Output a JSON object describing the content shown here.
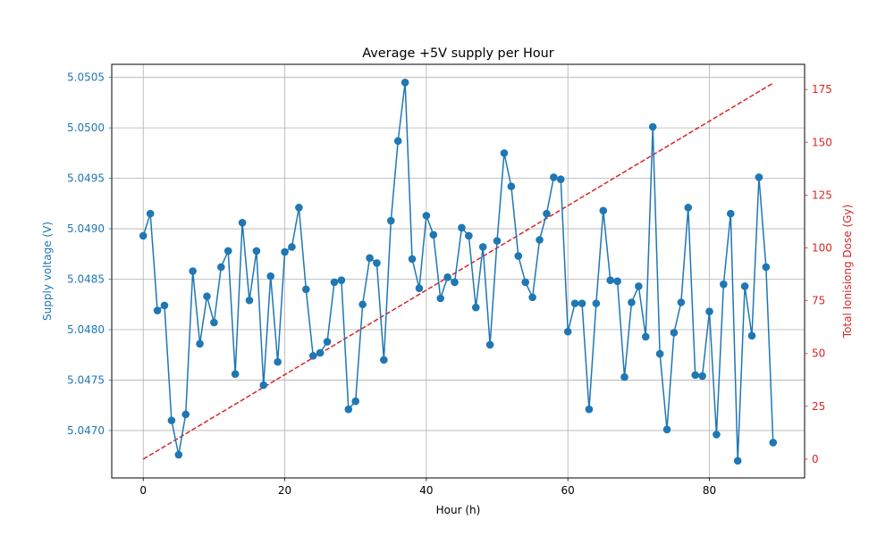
{
  "chart_data": {
    "type": "line",
    "title": "Average +5V supply per Hour",
    "xlabel": "Hour (h)",
    "ylabel": "Supply voltage (V)",
    "y2label": "Total Ionisiong Dose (Gy)",
    "xlim": [
      -4.45,
      93.45
    ],
    "ylim": [
      5.04653,
      5.05063
    ],
    "y2lim": [
      -8.9,
      186.9
    ],
    "xticks": [
      0,
      20,
      40,
      60,
      80
    ],
    "yticks": [
      5.047,
      5.0475,
      5.048,
      5.0485,
      5.049,
      5.0495,
      5.05,
      5.0505
    ],
    "ytick_labels": [
      "5.0470",
      "5.0475",
      "5.0480",
      "5.0485",
      "5.0490",
      "5.0495",
      "5.0500",
      "5.0505"
    ],
    "y2ticks": [
      0,
      25,
      50,
      75,
      100,
      125,
      150,
      175
    ],
    "grid": true,
    "left_axis_color": "#1f77b4",
    "right_axis_color": "#d62728",
    "series": [
      {
        "axis": "left",
        "style": "solid-line-with-circle-markers",
        "color": "#1f77b4",
        "x": [
          0,
          1,
          2,
          3,
          4,
          5,
          6,
          7,
          8,
          9,
          10,
          11,
          12,
          13,
          14,
          15,
          16,
          17,
          18,
          19,
          20,
          21,
          22,
          23,
          24,
          25,
          26,
          27,
          28,
          29,
          30,
          31,
          32,
          33,
          34,
          35,
          36,
          37,
          38,
          39,
          40,
          41,
          42,
          43,
          44,
          45,
          46,
          47,
          48,
          49,
          50,
          51,
          52,
          53,
          54,
          55,
          56,
          57,
          58,
          59,
          60,
          61,
          62,
          63,
          64,
          65,
          66,
          67,
          68,
          69,
          70,
          71,
          72,
          73,
          74,
          75,
          76,
          77,
          78,
          79,
          80,
          81,
          82,
          83,
          84,
          85,
          86,
          87,
          88,
          89
        ],
        "values": [
          5.04893,
          5.04915,
          5.04819,
          5.04824,
          5.0471,
          5.04676,
          5.04716,
          5.04858,
          5.04786,
          5.04833,
          5.04807,
          5.04862,
          5.04878,
          5.04756,
          5.04906,
          5.04829,
          5.04878,
          5.04745,
          5.04853,
          5.04768,
          5.04877,
          5.04882,
          5.04921,
          5.0484,
          5.04774,
          5.04777,
          5.04788,
          5.04847,
          5.04849,
          5.04721,
          5.04729,
          5.04825,
          5.04871,
          5.04866,
          5.0477,
          5.04908,
          5.04987,
          5.05045,
          5.0487,
          5.04841,
          5.04913,
          5.04894,
          5.04831,
          5.04852,
          5.04847,
          5.04901,
          5.04893,
          5.04822,
          5.04882,
          5.04785,
          5.04888,
          5.04975,
          5.04942,
          5.04873,
          5.04847,
          5.04832,
          5.04889,
          5.04915,
          5.04951,
          5.04949,
          5.04798,
          5.04826,
          5.04826,
          5.04721,
          5.04826,
          5.04918,
          5.04849,
          5.04848,
          5.04753,
          5.04827,
          5.04843,
          5.04793,
          5.05001,
          5.04776,
          5.04701,
          5.04797,
          5.04827,
          5.04921,
          5.04755,
          5.04754,
          5.04818,
          5.04696,
          5.04845,
          5.04915,
          5.0467,
          5.04843,
          5.04794,
          5.04951,
          5.04862,
          5.04688
        ]
      },
      {
        "axis": "right",
        "style": "dashed-line",
        "color": "#d62728",
        "x": [
          0,
          89
        ],
        "values": [
          0,
          178
        ]
      }
    ]
  }
}
